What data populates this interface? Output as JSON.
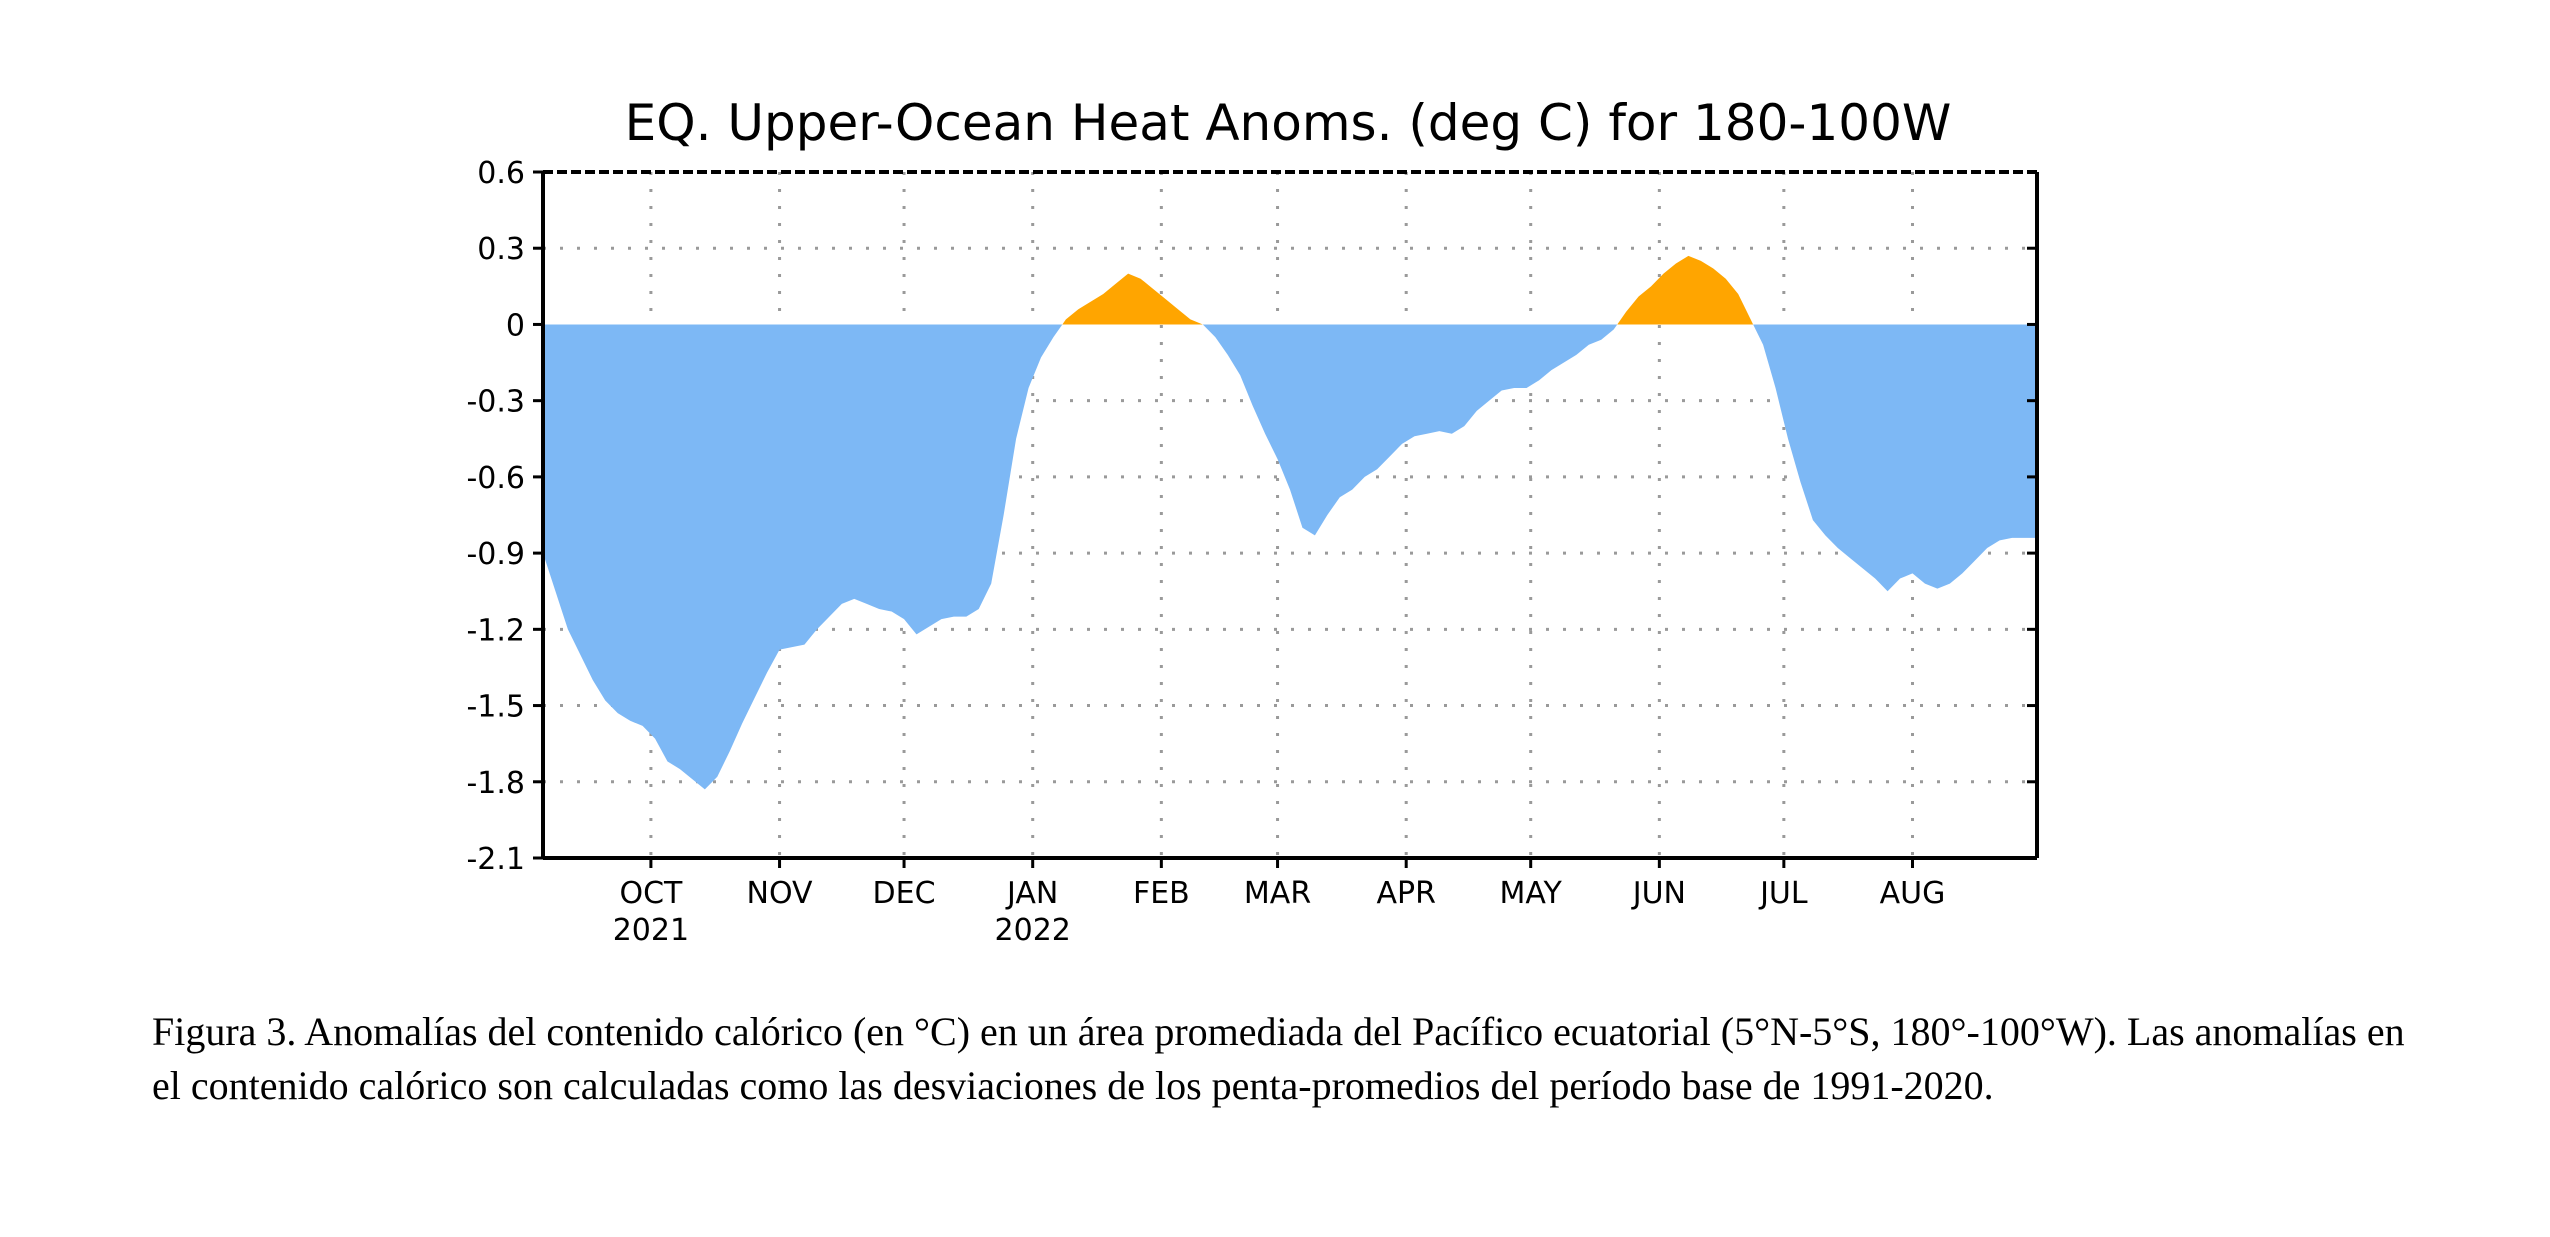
{
  "caption": "Figura 3. Anomalías del contenido calórico (en °C) en un área promediada del Pacífico ecuatorial (5°N-5°S, 180°-100°W). Las anomalías en el contenido calórico son calculadas como las desviaciones de los penta-promedios del período base de 1991-2020.",
  "chart_data": {
    "type": "area",
    "title": "EQ. Upper-Ocean Heat Anoms. (deg C) for 180-100W",
    "xlabel": "",
    "ylabel": "",
    "ylim": [
      -2.1,
      0.6
    ],
    "yticks": [
      0.6,
      0.3,
      0,
      -0.3,
      -0.6,
      -0.9,
      -1.2,
      -1.5,
      -1.8,
      -2.1
    ],
    "ytick_labels": [
      "0.6",
      "0.3",
      "0",
      "-0.3",
      "-0.6",
      "-0.9",
      "-1.2",
      "-1.5",
      "-1.8",
      "-2.1"
    ],
    "xlim": [
      "2021-09-05",
      "2022-08-31"
    ],
    "xticks": [
      {
        "date": "2021-10-01",
        "label": "OCT",
        "year": "2021"
      },
      {
        "date": "2021-11-01",
        "label": "NOV",
        "year": ""
      },
      {
        "date": "2021-12-01",
        "label": "DEC",
        "year": ""
      },
      {
        "date": "2022-01-01",
        "label": "JAN",
        "year": "2022"
      },
      {
        "date": "2022-02-01",
        "label": "FEB",
        "year": ""
      },
      {
        "date": "2022-03-01",
        "label": "MAR",
        "year": ""
      },
      {
        "date": "2022-04-01",
        "label": "APR",
        "year": ""
      },
      {
        "date": "2022-05-01",
        "label": "MAY",
        "year": ""
      },
      {
        "date": "2022-06-01",
        "label": "JUN",
        "year": ""
      },
      {
        "date": "2022-07-01",
        "label": "JUL",
        "year": ""
      },
      {
        "date": "2022-08-01",
        "label": "AUG",
        "year": ""
      }
    ],
    "grid": true,
    "colors": {
      "positive": "#FFA500",
      "negative": "#7DB8F5"
    },
    "series": [
      {
        "x": [
          "2021-09-05",
          "2021-09-08",
          "2021-09-11",
          "2021-09-14",
          "2021-09-17",
          "2021-09-20",
          "2021-09-23",
          "2021-09-26",
          "2021-09-29",
          "2021-10-02",
          "2021-10-05",
          "2021-10-08",
          "2021-10-11",
          "2021-10-14",
          "2021-10-17",
          "2021-10-20",
          "2021-10-23",
          "2021-10-26",
          "2021-10-29",
          "2021-11-01",
          "2021-11-04",
          "2021-11-07",
          "2021-11-10",
          "2021-11-13",
          "2021-11-16",
          "2021-11-19",
          "2021-11-22",
          "2021-11-25",
          "2021-11-28",
          "2021-12-01",
          "2021-12-04",
          "2021-12-07",
          "2021-12-10",
          "2021-12-13",
          "2021-12-16",
          "2021-12-19",
          "2021-12-22",
          "2021-12-25",
          "2021-12-28",
          "2021-12-31",
          "2022-01-03",
          "2022-01-06",
          "2022-01-09",
          "2022-01-12",
          "2022-01-15",
          "2022-01-18",
          "2022-01-21",
          "2022-01-24",
          "2022-01-27",
          "2022-01-30",
          "2022-02-02",
          "2022-02-05",
          "2022-02-08",
          "2022-02-11",
          "2022-02-14",
          "2022-02-17",
          "2022-02-20",
          "2022-02-23",
          "2022-02-26",
          "2022-03-01",
          "2022-03-04",
          "2022-03-07",
          "2022-03-10",
          "2022-03-13",
          "2022-03-16",
          "2022-03-19",
          "2022-03-22",
          "2022-03-25",
          "2022-03-28",
          "2022-03-31",
          "2022-04-03",
          "2022-04-06",
          "2022-04-09",
          "2022-04-12",
          "2022-04-15",
          "2022-04-18",
          "2022-04-21",
          "2022-04-24",
          "2022-04-27",
          "2022-04-30",
          "2022-05-03",
          "2022-05-06",
          "2022-05-09",
          "2022-05-12",
          "2022-05-15",
          "2022-05-18",
          "2022-05-21",
          "2022-05-24",
          "2022-05-27",
          "2022-05-30",
          "2022-06-02",
          "2022-06-05",
          "2022-06-08",
          "2022-06-11",
          "2022-06-14",
          "2022-06-17",
          "2022-06-20",
          "2022-06-23",
          "2022-06-26",
          "2022-06-29",
          "2022-07-02",
          "2022-07-05",
          "2022-07-08",
          "2022-07-11",
          "2022-07-14",
          "2022-07-17",
          "2022-07-20",
          "2022-07-23",
          "2022-07-26",
          "2022-07-29",
          "2022-08-01",
          "2022-08-04",
          "2022-08-07",
          "2022-08-10",
          "2022-08-13",
          "2022-08-16",
          "2022-08-19",
          "2022-08-22",
          "2022-08-25",
          "2022-08-28",
          "2022-08-31"
        ],
        "y": [
          -0.9,
          -1.05,
          -1.2,
          -1.3,
          -1.4,
          -1.48,
          -1.53,
          -1.56,
          -1.58,
          -1.63,
          -1.72,
          -1.75,
          -1.79,
          -1.83,
          -1.78,
          -1.68,
          -1.57,
          -1.47,
          -1.37,
          -1.28,
          -1.27,
          -1.26,
          -1.2,
          -1.15,
          -1.1,
          -1.08,
          -1.1,
          -1.12,
          -1.13,
          -1.16,
          -1.22,
          -1.19,
          -1.16,
          -1.15,
          -1.15,
          -1.12,
          -1.02,
          -0.75,
          -0.45,
          -0.25,
          -0.13,
          -0.05,
          0.02,
          0.06,
          0.09,
          0.12,
          0.16,
          0.2,
          0.18,
          0.14,
          0.1,
          0.06,
          0.02,
          0.0,
          -0.05,
          -0.12,
          -0.2,
          -0.32,
          -0.43,
          -0.53,
          -0.65,
          -0.8,
          -0.83,
          -0.75,
          -0.68,
          -0.65,
          -0.6,
          -0.57,
          -0.52,
          -0.47,
          -0.44,
          -0.43,
          -0.42,
          -0.43,
          -0.4,
          -0.34,
          -0.3,
          -0.26,
          -0.25,
          -0.25,
          -0.22,
          -0.18,
          -0.15,
          -0.12,
          -0.08,
          -0.06,
          -0.02,
          0.05,
          0.11,
          0.15,
          0.2,
          0.24,
          0.27,
          0.25,
          0.22,
          0.18,
          0.12,
          0.02,
          -0.08,
          -0.25,
          -0.45,
          -0.62,
          -0.77,
          -0.83,
          -0.88,
          -0.92,
          -0.96,
          -1.0,
          -1.05,
          -1.0,
          -0.98,
          -1.02,
          -1.04,
          -1.02,
          -0.98,
          -0.93,
          -0.88,
          -0.85,
          -0.84,
          -0.84,
          -0.84
        ]
      }
    ]
  }
}
